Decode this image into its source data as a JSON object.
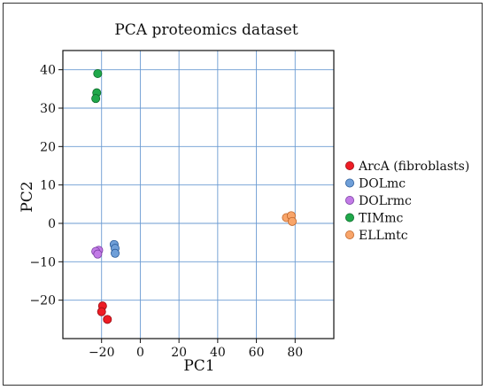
{
  "chart_data": {
    "type": "scatter",
    "title": "PCA proteomics dataset",
    "xlabel": "PC1",
    "ylabel": "PC2",
    "xlim": [
      -40,
      100
    ],
    "ylim": [
      -30,
      45
    ],
    "xticks": [
      -20,
      0,
      20,
      40,
      60,
      80
    ],
    "xtick_labels": [
      "−20",
      "0",
      "20",
      "40",
      "60",
      "80"
    ],
    "yticks": [
      -20,
      -10,
      0,
      10,
      20,
      30,
      40
    ],
    "ytick_labels": [
      "−20",
      "−10",
      "0",
      "10",
      "20",
      "30",
      "40"
    ],
    "grid": true,
    "legend_position": "right",
    "series": [
      {
        "name": "ArcA (fibroblasts)",
        "color": "#ee1c25",
        "stroke": "#9c0f15",
        "points": [
          [
            -19.5,
            -21.5
          ],
          [
            -20,
            -23
          ],
          [
            -17,
            -25
          ]
        ]
      },
      {
        "name": "DOLmc",
        "color": "#6f9fd8",
        "stroke": "#2c5c99",
        "points": [
          [
            -13.5,
            -5.5
          ],
          [
            -13,
            -6.5
          ],
          [
            -13,
            -7.8
          ]
        ]
      },
      {
        "name": "DOLrmc",
        "color": "#c27be6",
        "stroke": "#7a3fa3",
        "points": [
          [
            -21.5,
            -7
          ],
          [
            -23,
            -7.3
          ],
          [
            -22,
            -8
          ]
        ]
      },
      {
        "name": "TIMmc",
        "color": "#1fa84a",
        "stroke": "#0e6b2b",
        "points": [
          [
            -22,
            39
          ],
          [
            -22.5,
            34
          ],
          [
            -23,
            32.5
          ]
        ]
      },
      {
        "name": "ELLmtc",
        "color": "#f8a56a",
        "stroke": "#c0662a",
        "points": [
          [
            75.5,
            1.5
          ],
          [
            78,
            2
          ],
          [
            78.5,
            0.5
          ]
        ]
      }
    ]
  }
}
